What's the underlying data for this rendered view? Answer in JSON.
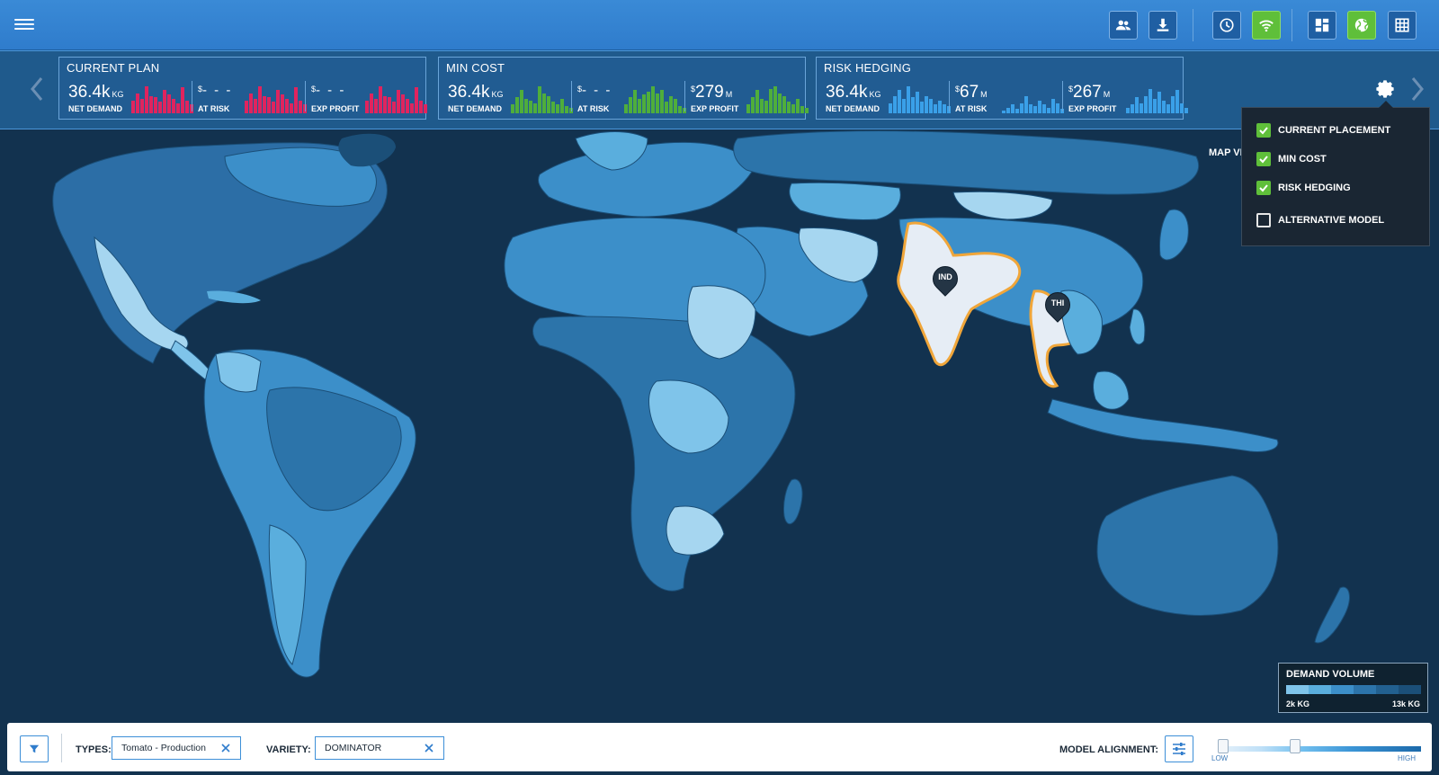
{
  "header": {
    "toolbar_icons": [
      "users-icon",
      "download-icon",
      "clock-icon",
      "wifi-icon",
      "dashboard-icon",
      "globe-icon",
      "grid-icon"
    ],
    "active_icons": [
      "wifi-icon",
      "globe-icon"
    ],
    "accent": "#5fbf3a"
  },
  "panels": [
    {
      "title": "CURRENT PLAN",
      "color": "#e0245e",
      "metrics": [
        {
          "value": "36.4k",
          "unit": "KG",
          "prefix": "",
          "label": "NET DEMAND",
          "bars": [
            0.45,
            0.7,
            0.5,
            0.95,
            0.6,
            0.55,
            0.4,
            0.8,
            0.65,
            0.5,
            0.35,
            0.9,
            0.45,
            0.3
          ]
        },
        {
          "value": "- - -",
          "unit": "",
          "prefix": "$",
          "label": "AT RISK",
          "bars": [
            0.45,
            0.7,
            0.5,
            0.95,
            0.6,
            0.55,
            0.4,
            0.8,
            0.65,
            0.5,
            0.35,
            0.9,
            0.45,
            0.3
          ]
        },
        {
          "value": "- - -",
          "unit": "",
          "prefix": "$",
          "label": "EXP PROFIT",
          "bars": [
            0.45,
            0.7,
            0.5,
            0.95,
            0.6,
            0.55,
            0.4,
            0.8,
            0.65,
            0.5,
            0.35,
            0.9,
            0.45,
            0.3
          ]
        }
      ]
    },
    {
      "title": "MIN COST",
      "color": "#4fae3b",
      "metrics": [
        {
          "value": "36.4k",
          "unit": "KG",
          "prefix": "",
          "label": "NET DEMAND",
          "bars": [
            0.3,
            0.55,
            0.8,
            0.5,
            0.45,
            0.35,
            0.95,
            0.7,
            0.6,
            0.4,
            0.3,
            0.5,
            0.25,
            0.2
          ]
        },
        {
          "value": "- - -",
          "unit": "",
          "prefix": "$",
          "label": "AT RISK",
          "bars": [
            0.3,
            0.55,
            0.8,
            0.5,
            0.65,
            0.75,
            0.95,
            0.7,
            0.8,
            0.4,
            0.6,
            0.5,
            0.25,
            0.2
          ]
        },
        {
          "value": "279",
          "unit": "M",
          "prefix": "$",
          "label": "EXP PROFIT",
          "bars": [
            0.3,
            0.55,
            0.8,
            0.5,
            0.45,
            0.85,
            0.95,
            0.7,
            0.6,
            0.4,
            0.3,
            0.5,
            0.25,
            0.2
          ]
        }
      ]
    },
    {
      "title": "RISK HEDGING",
      "color": "#3aa0e8",
      "metrics": [
        {
          "value": "36.4k",
          "unit": "KG",
          "prefix": "",
          "label": "NET DEMAND",
          "bars": [
            0.35,
            0.6,
            0.8,
            0.5,
            0.95,
            0.55,
            0.75,
            0.4,
            0.6,
            0.5,
            0.3,
            0.45,
            0.3,
            0.25
          ]
        },
        {
          "value": "67",
          "unit": "M",
          "prefix": "$",
          "label": "AT RISK",
          "bars": [
            0.1,
            0.2,
            0.3,
            0.15,
            0.35,
            0.6,
            0.3,
            0.25,
            0.45,
            0.3,
            0.2,
            0.5,
            0.35,
            0.15
          ]
        },
        {
          "value": "267",
          "unit": "M",
          "prefix": "$",
          "label": "EXP PROFIT",
          "bars": [
            0.2,
            0.3,
            0.55,
            0.35,
            0.6,
            0.85,
            0.5,
            0.75,
            0.45,
            0.3,
            0.6,
            0.8,
            0.35,
            0.2
          ]
        }
      ]
    }
  ],
  "settings": {
    "options": [
      {
        "label": "CURRENT PLACEMENT",
        "checked": true
      },
      {
        "label": "MIN COST",
        "checked": true
      },
      {
        "label": "RISK HEDGING",
        "checked": true
      },
      {
        "label": "ALTERNATIVE MODEL",
        "checked": false
      }
    ],
    "map_view_label": "MAP VI"
  },
  "map": {
    "pins": [
      "IND",
      "THI"
    ],
    "highlight_color": "#f0a63a"
  },
  "legend": {
    "title": "DEMAND VOLUME",
    "low": "2k KG",
    "high": "13k KG",
    "colors": [
      "#7fc4ea",
      "#5aaedd",
      "#3c8fc9",
      "#2c74aa",
      "#22608f",
      "#1b4f78"
    ]
  },
  "filters": {
    "types_label": "TYPES:",
    "types_value": "Tomato - Production",
    "variety_label": "VARIETY:",
    "variety_value": "DOMINATOR",
    "alignment_label": "MODEL ALIGNMENT:",
    "slider_low": "LOW",
    "slider_high": "HIGH",
    "slider_position": 0.37
  }
}
